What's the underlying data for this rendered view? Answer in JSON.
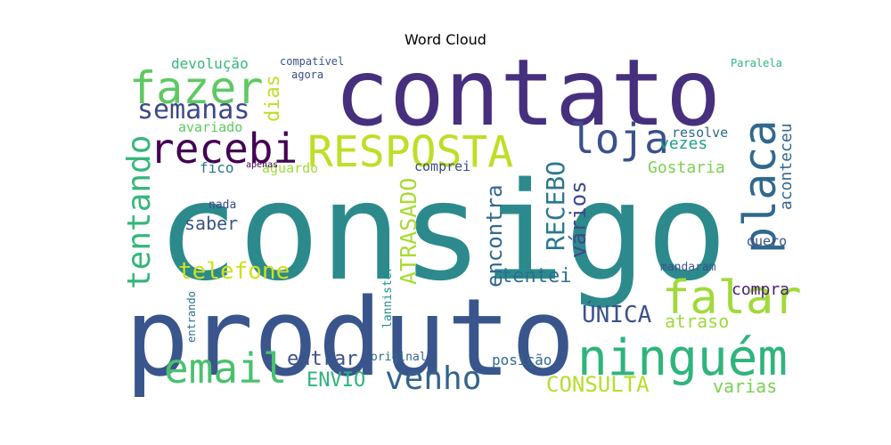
{
  "chart_data": {
    "type": "wordcloud",
    "title": "Word Cloud",
    "words": [
      {
        "text": "consigo",
        "color": "#2c8a8c"
      },
      {
        "text": "produto",
        "color": "#39558c"
      },
      {
        "text": "contato",
        "color": "#46307e"
      },
      {
        "text": "ninguém",
        "color": "#2fb47c"
      },
      {
        "text": "RESPOSTA",
        "color": "#bddf26"
      },
      {
        "text": "fazer",
        "color": "#5ec962"
      },
      {
        "text": "recebi",
        "color": "#440154"
      },
      {
        "text": "loja",
        "color": "#3b518b"
      },
      {
        "text": "placa",
        "color": "#31688e"
      },
      {
        "text": "falar",
        "color": "#a0da39"
      },
      {
        "text": "email",
        "color": "#4ac16d"
      },
      {
        "text": "venho",
        "color": "#33638d"
      },
      {
        "text": "tentando",
        "color": "#35b779"
      },
      {
        "text": "semanas",
        "color": "#3e4989"
      },
      {
        "text": "telefone",
        "color": "#d0e11c"
      },
      {
        "text": "ATRASADO",
        "color": "#a8db34"
      },
      {
        "text": "encontra",
        "color": "#31688e"
      },
      {
        "text": "RECEBO",
        "color": "#2a788e"
      },
      {
        "text": "vários",
        "color": "#3e4989"
      },
      {
        "text": "ÚNICA",
        "color": "#3b528b"
      },
      {
        "text": "CONSULTA",
        "color": "#b5de2b"
      },
      {
        "text": "dias",
        "color": "#bddf26"
      },
      {
        "text": "aconteceu",
        "color": "#31688e"
      },
      {
        "text": "tentei",
        "color": "#2c728e"
      },
      {
        "text": "ENVIO",
        "color": "#2fb47c"
      },
      {
        "text": "entrar",
        "color": "#3b528b"
      },
      {
        "text": "varias",
        "color": "#7ad151"
      },
      {
        "text": "atraso",
        "color": "#9fda3a"
      },
      {
        "text": "vezes",
        "color": "#1f9e89"
      },
      {
        "text": "Gostaria",
        "color": "#7ad151"
      },
      {
        "text": "compra",
        "color": "#481f70"
      },
      {
        "text": "saber",
        "color": "#3b528b"
      },
      {
        "text": "posição",
        "color": "#31688e"
      },
      {
        "text": "devolução",
        "color": "#35b779"
      },
      {
        "text": "avariado",
        "color": "#5ec962"
      },
      {
        "text": "resolve",
        "color": "#31688e"
      },
      {
        "text": "fico",
        "color": "#2a788e"
      },
      {
        "text": "aguardo",
        "color": "#9fda3a"
      },
      {
        "text": "comprei",
        "color": "#3e4989"
      },
      {
        "text": "quero",
        "color": "#3b528b"
      },
      {
        "text": "mandaram",
        "color": "#3b528b"
      },
      {
        "text": "nada",
        "color": "#3e4989"
      },
      {
        "text": "original",
        "color": "#31688e"
      },
      {
        "text": "lannister",
        "color": "#21918c"
      },
      {
        "text": "entrando",
        "color": "#2c728e"
      },
      {
        "text": "compatível",
        "color": "#3b528b"
      },
      {
        "text": "agora",
        "color": "#3e4989"
      },
      {
        "text": "Paralela",
        "color": "#2fb47c"
      },
      {
        "text": "apenas",
        "color": "#440154"
      }
    ]
  }
}
